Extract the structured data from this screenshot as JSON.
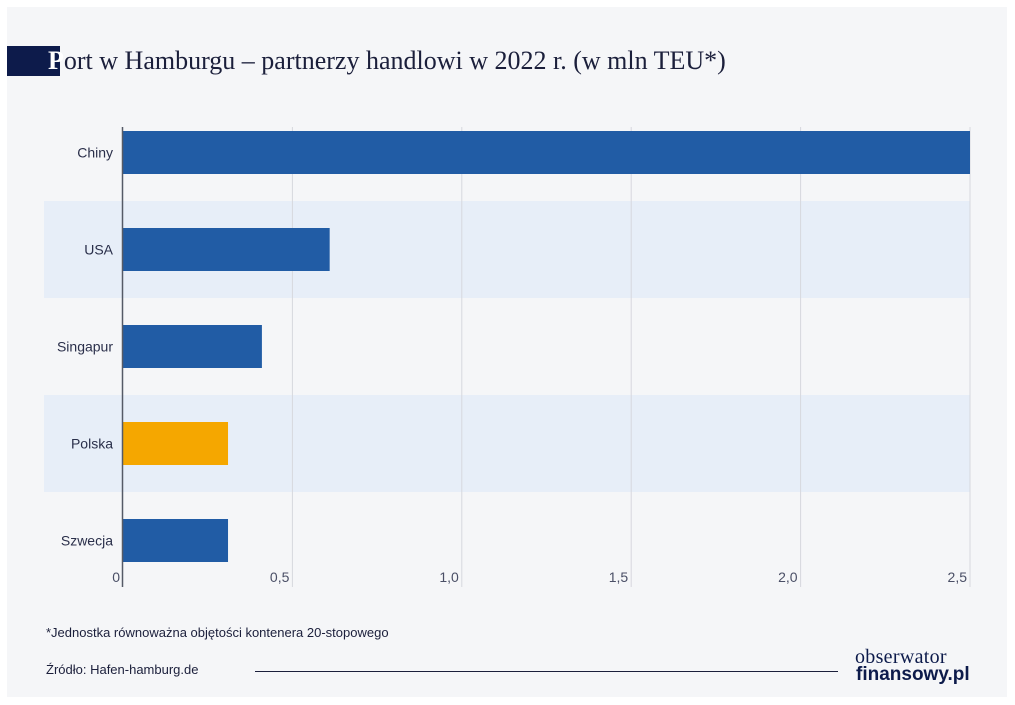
{
  "header": {
    "title_first_letter": "P",
    "title_rest": "ort w Hamburgu – partnerzy handlowi w 2022 r. (w mln TEU*)"
  },
  "chart_data": {
    "type": "bar",
    "orientation": "horizontal",
    "title": "Port w Hamburgu – partnerzy handlowi w 2022 r. (w mln TEU*)",
    "categories": [
      "Chiny",
      "USA",
      "Singapur",
      "Polska",
      "Szwecja"
    ],
    "values": [
      2.52,
      0.61,
      0.41,
      0.31,
      0.31
    ],
    "highlight_category": "Polska",
    "xlim": [
      0,
      2.5
    ],
    "xticks": [
      "0",
      "0,5",
      "1,0",
      "1,5",
      "2,0",
      "2,5"
    ],
    "xtick_values": [
      0,
      0.5,
      1.0,
      1.5,
      2.0,
      2.5
    ],
    "grid": true,
    "colors": {
      "bar": "#215ca5",
      "highlight": "#f5a700",
      "band": "#e7eef8",
      "grid": "#d6d8de",
      "axis": "#555a66"
    }
  },
  "footer": {
    "footnote": "*Jednostka równoważna objętości kontenera 20-stopowego",
    "source": "Źródło: Hafen-hamburg.de",
    "logo_top": "obserwator",
    "logo_bottom": "finansowy.pl"
  }
}
